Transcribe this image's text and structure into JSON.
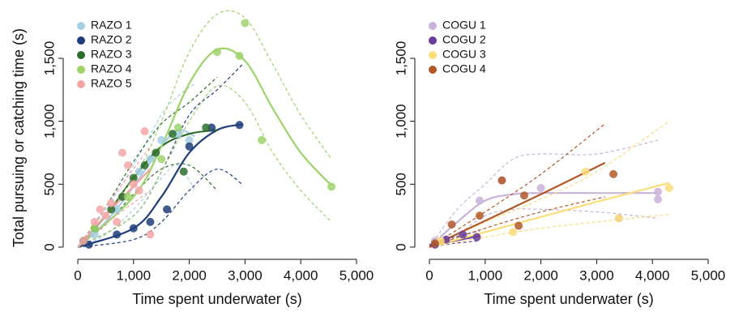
{
  "chart_data": [
    {
      "type": "scatter",
      "x_label": "Time spent underwater (s)",
      "y_label": "Total pursuing or catching time (s)",
      "xlim": [
        -150,
        5000
      ],
      "ylim": [
        -100,
        1850
      ],
      "xticks": [
        0,
        {
          "value": 1000,
          "label": "1,000"
        },
        {
          "value": 2000,
          "label": "2,000"
        },
        {
          "value": 3000,
          "label": "3,000"
        },
        {
          "value": 4000,
          "label": "4,000"
        },
        {
          "value": 5000,
          "label": "5,000"
        }
      ],
      "yticks": [
        0,
        500,
        {
          "value": 1000,
          "label": "1,000"
        },
        {
          "value": 1500,
          "label": "1,500"
        }
      ],
      "legend": "top-left",
      "series": [
        {
          "name": "RAZO 1",
          "color": "#a6cee3",
          "x": [
            300,
            700,
            1100,
            1300,
            1500,
            1800,
            2000
          ],
          "y": [
            100,
            300,
            600,
            700,
            850,
            900,
            850
          ],
          "fit": {
            "x": [
              0,
              500,
              1000,
              1500,
              1800,
              2100
            ],
            "y": [
              0,
              200,
              480,
              800,
              930,
              880
            ],
            "lower": [
              0,
              100,
              300,
              550,
              650,
              450
            ],
            "upper": [
              0,
              300,
              650,
              1050,
              1200,
              1300
            ]
          }
        },
        {
          "name": "RAZO 2",
          "color": "#1f3d7a",
          "x": [
            200,
            700,
            1000,
            1300,
            1600,
            2000,
            2400,
            2900
          ],
          "y": [
            20,
            100,
            150,
            200,
            300,
            800,
            950,
            970
          ],
          "fit": {
            "x": [
              0,
              1000,
              1500,
              2000,
              2500,
              2950
            ],
            "y": [
              0,
              150,
              400,
              750,
              930,
              975
            ],
            "lower": [
              0,
              60,
              200,
              450,
              620,
              500
            ],
            "upper": [
              0,
              250,
              600,
              1050,
              1250,
              1450
            ]
          }
        },
        {
          "name": "RAZO 3",
          "color": "#2d6e2d",
          "x": [
            100,
            300,
            600,
            800,
            1000,
            1200,
            1400,
            1700,
            2300,
            1900
          ],
          "y": [
            50,
            150,
            300,
            400,
            550,
            650,
            750,
            900,
            950,
            600
          ],
          "fit": {
            "x": [
              0,
              500,
              1000,
              1500,
              2000,
              2500
            ],
            "y": [
              0,
              250,
              550,
              800,
              900,
              930
            ],
            "lower": [
              0,
              180,
              420,
              620,
              650,
              450
            ],
            "upper": [
              0,
              320,
              680,
              980,
              1150,
              1350
            ]
          }
        },
        {
          "name": "RAZO 4",
          "color": "#9ed36a",
          "x": [
            300,
            900,
            1500,
            2500,
            2900,
            3000,
            3300,
            4550,
            1800
          ],
          "y": [
            150,
            400,
            700,
            1550,
            1520,
            1780,
            850,
            480,
            950
          ],
          "fit": {
            "x": [
              0,
              1000,
              1500,
              2000,
              2500,
              3000,
              3500,
              4000,
              4550
            ],
            "y": [
              0,
              400,
              800,
              1300,
              1570,
              1480,
              1100,
              750,
              490
            ],
            "lower": [
              0,
              250,
              600,
              1000,
              1280,
              1150,
              750,
              450,
              200
            ],
            "upper": [
              0,
              550,
              1000,
              1550,
              1850,
              1820,
              1450,
              1050,
              700
            ]
          }
        },
        {
          "name": "RAZO 5",
          "color": "#f4a6a6",
          "x": [
            100,
            300,
            400,
            500,
            700,
            800,
            900,
            1100,
            1200,
            1300,
            600,
            1000
          ],
          "y": [
            50,
            200,
            300,
            250,
            200,
            750,
            650,
            450,
            920,
            100,
            350,
            500
          ],
          "fit": {
            "x": [
              0,
              600,
              1300
            ],
            "y": [
              0,
              300,
              620
            ],
            "lower": [
              0,
              220,
              450
            ],
            "upper": [
              0,
              380,
              800
            ]
          }
        }
      ]
    },
    {
      "type": "scatter",
      "x_label": "Time spent underwater (s)",
      "xlim": [
        -150,
        5000
      ],
      "ylim": [
        -100,
        1850
      ],
      "xticks": [
        0,
        {
          "value": 1000,
          "label": "1,000"
        },
        {
          "value": 2000,
          "label": "2,000"
        },
        {
          "value": 3000,
          "label": "3,000"
        },
        {
          "value": 4000,
          "label": "4,000"
        },
        {
          "value": 5000,
          "label": "5,000"
        }
      ],
      "yticks": [
        0,
        500,
        {
          "value": 1000,
          "label": "1,000"
        },
        {
          "value": 1500,
          "label": "1,500"
        }
      ],
      "legend": "top-left",
      "series": [
        {
          "name": "COGU 1",
          "color": "#c9b3d9",
          "x": [
            100,
            900,
            1300,
            2000,
            3400,
            4100,
            4100
          ],
          "y": [
            50,
            370,
            530,
            470,
            230,
            380,
            440
          ],
          "fit": {
            "x": [
              0,
              500,
              1000,
              1500,
              2000,
              3000,
              4100
            ],
            "y": [
              0,
              200,
              370,
              420,
              430,
              430,
              430
            ],
            "lower": [
              0,
              100,
              250,
              300,
              300,
              280,
              230
            ],
            "upper": [
              0,
              300,
              500,
              700,
              740,
              740,
              850
            ]
          }
        },
        {
          "name": "COGU 2",
          "color": "#6a3d9a",
          "x": [
            100,
            300,
            600,
            850
          ],
          "y": [
            20,
            60,
            100,
            80
          ],
          "fit": {
            "x": [
              0,
              450,
              900
            ],
            "y": [
              10,
              50,
              90
            ],
            "lower": [
              0,
              30,
              50
            ],
            "upper": [
              20,
              80,
              130
            ]
          }
        },
        {
          "name": "COGU 3",
          "color": "#fddc7a",
          "x": [
            200,
            1500,
            2800,
            3400,
            4300
          ],
          "y": [
            50,
            120,
            600,
            230,
            470
          ],
          "fit": {
            "x": [
              0,
              1000,
              2000,
              3000,
              4300
            ],
            "y": [
              0,
              120,
              240,
              360,
              510
            ],
            "lower": [
              0,
              80,
              150,
              200,
              260
            ],
            "upper": [
              0,
              200,
              380,
              600,
              1000
            ]
          }
        },
        {
          "name": "COGU 4",
          "color": "#b15928",
          "x": [
            100,
            400,
            900,
            1300,
            1600,
            1700,
            3300
          ],
          "y": [
            30,
            180,
            250,
            530,
            170,
            410,
            580
          ],
          "fit": {
            "x": [
              0,
              1000,
              2000,
              3150
            ],
            "y": [
              0,
              210,
              420,
              670
            ],
            "lower": [
              0,
              150,
              280,
              400
            ],
            "upper": [
              0,
              280,
              580,
              980
            ]
          }
        }
      ]
    }
  ]
}
